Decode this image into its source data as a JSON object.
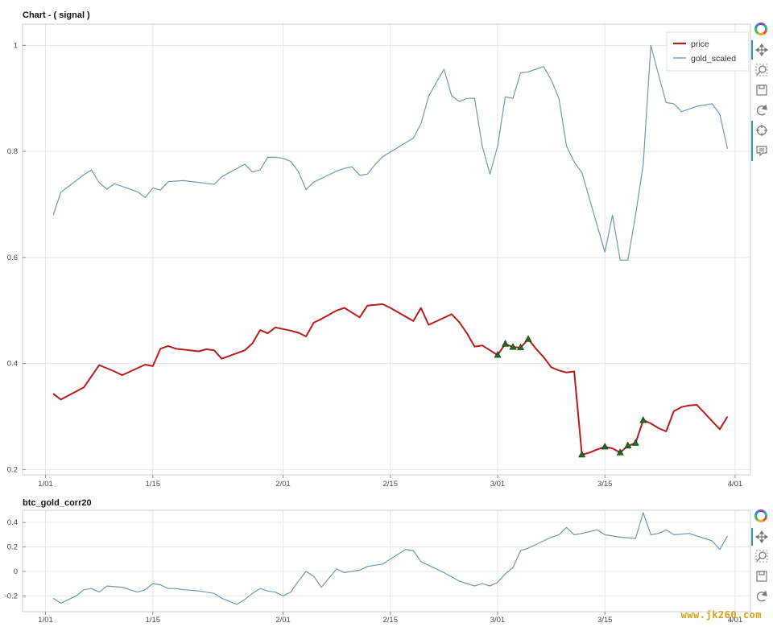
{
  "colors": {
    "price": "#b71c1c",
    "gold": "#6f97a8",
    "marker": "#1f6b1f",
    "grid": "#e6e6e6",
    "toolbar_active": "#2e9aa7"
  },
  "watermark": "www.jk260.com",
  "chart_data": [
    {
      "type": "line",
      "title": "Chart - ( signal )",
      "x_tick_labels": [
        "1/01",
        "1/15",
        "2/01",
        "2/15",
        "3/01",
        "3/15",
        "4/01"
      ],
      "x_tick_days": [
        0,
        14,
        31,
        45,
        59,
        73,
        90
      ],
      "ylim": [
        0.19,
        1.04
      ],
      "y_ticks": [
        0.2,
        0.4,
        0.6,
        0.8,
        1
      ],
      "y_tick_labels": [
        "0.2",
        "0.4",
        "0.6",
        "0.8",
        "1"
      ],
      "grid": true,
      "legend_position": "top-right",
      "series": [
        {
          "name": "price",
          "color_key": "price",
          "x": [
            1,
            2,
            5,
            7,
            9,
            10,
            13,
            14,
            15,
            16,
            17,
            20,
            21,
            22,
            23,
            26,
            27,
            28,
            29,
            30,
            32,
            33,
            34,
            35,
            36,
            37,
            38,
            39,
            41,
            42,
            44,
            45,
            48,
            49,
            50,
            53,
            54,
            55,
            56,
            57,
            58,
            59,
            60,
            61,
            62,
            63,
            64,
            65,
            66,
            67,
            68,
            69,
            70,
            71,
            72,
            73,
            74,
            75,
            76,
            77,
            78,
            79,
            80,
            81,
            82,
            83,
            84,
            85,
            88,
            89
          ],
          "y": [
            0.343,
            0.332,
            0.355,
            0.397,
            0.385,
            0.378,
            0.398,
            0.395,
            0.428,
            0.433,
            0.428,
            0.423,
            0.427,
            0.425,
            0.409,
            0.425,
            0.438,
            0.463,
            0.457,
            0.468,
            0.462,
            0.458,
            0.451,
            0.477,
            0.484,
            0.492,
            0.5,
            0.505,
            0.487,
            0.509,
            0.512,
            0.505,
            0.48,
            0.505,
            0.473,
            0.493,
            0.478,
            0.457,
            0.432,
            0.434,
            0.425,
            0.416,
            0.437,
            0.431,
            0.43,
            0.446,
            0.428,
            0.412,
            0.393,
            0.387,
            0.383,
            0.385,
            0.228,
            0.232,
            0.238,
            0.243,
            0.24,
            0.232,
            0.245,
            0.25,
            0.293,
            0.287,
            0.278,
            0.272,
            0.31,
            0.318,
            0.321,
            0.322,
            0.276,
            0.3
          ]
        },
        {
          "name": "gold_scaled",
          "color_key": "gold",
          "x": [
            1,
            2,
            5,
            6,
            7,
            8,
            9,
            12,
            13,
            14,
            15,
            16,
            18,
            22,
            23,
            26,
            27,
            28,
            29,
            30,
            31,
            32,
            33,
            34,
            35,
            38,
            39,
            40,
            41,
            42,
            43,
            44,
            48,
            49,
            50,
            51,
            52,
            53,
            54,
            55,
            56,
            57,
            58,
            59,
            60,
            61,
            62,
            63,
            64,
            65,
            66,
            67,
            68,
            69,
            70,
            73,
            74,
            75,
            76,
            77,
            78,
            79,
            80,
            81,
            82,
            83,
            84,
            85,
            87,
            88,
            89
          ],
          "y": [
            0.68,
            0.723,
            0.756,
            0.765,
            0.741,
            0.729,
            0.739,
            0.724,
            0.713,
            0.731,
            0.727,
            0.743,
            0.745,
            0.738,
            0.752,
            0.776,
            0.761,
            0.765,
            0.789,
            0.789,
            0.787,
            0.781,
            0.762,
            0.728,
            0.742,
            0.763,
            0.768,
            0.771,
            0.755,
            0.757,
            0.775,
            0.79,
            0.825,
            0.852,
            0.904,
            0.93,
            0.955,
            0.905,
            0.894,
            0.9,
            0.9,
            0.81,
            0.757,
            0.81,
            0.903,
            0.9,
            0.948,
            0.95,
            0.955,
            0.96,
            0.935,
            0.9,
            0.81,
            0.78,
            0.76,
            0.61,
            0.68,
            0.595,
            0.595,
            0.68,
            0.775,
            1.0,
            0.945,
            0.892,
            0.89,
            0.875,
            0.88,
            0.885,
            0.89,
            0.87,
            0.805
          ]
        }
      ],
      "markers": {
        "shape": "triangle",
        "series": "price",
        "x": [
          59,
          60,
          61,
          62,
          63,
          70,
          73,
          75,
          76,
          77,
          78
        ],
        "y": [
          0.416,
          0.437,
          0.431,
          0.43,
          0.446,
          0.228,
          0.243,
          0.232,
          0.245,
          0.25,
          0.293
        ]
      }
    },
    {
      "type": "line",
      "title": "btc_gold_corr20",
      "x_tick_labels": [
        "1/01",
        "1/15",
        "2/01",
        "2/15",
        "3/01",
        "3/15",
        "4/01"
      ],
      "x_tick_days": [
        0,
        14,
        31,
        45,
        59,
        73,
        90
      ],
      "ylim": [
        -0.33,
        0.5
      ],
      "y_ticks": [
        -0.2,
        0,
        0.2,
        0.4
      ],
      "y_tick_labels": [
        "-0.2",
        "0",
        "0.2",
        "0.4"
      ],
      "grid": true,
      "series": [
        {
          "name": "btc_gold_corr20",
          "color_key": "gold",
          "x": [
            1,
            2,
            4,
            5,
            6,
            7,
            8,
            10,
            12,
            13,
            14,
            15,
            16,
            17,
            18,
            20,
            22,
            23,
            25,
            26,
            27,
            28,
            29,
            30,
            31,
            32,
            33,
            34,
            35,
            36,
            38,
            39,
            40,
            41,
            42,
            44,
            47,
            48,
            49,
            50,
            52,
            54,
            55,
            56,
            57,
            58,
            59,
            60,
            61,
            62,
            63,
            64,
            66,
            67,
            68,
            69,
            70,
            72,
            73,
            74,
            75,
            77,
            78,
            79,
            80,
            81,
            82,
            84,
            87,
            88,
            89
          ],
          "y": [
            -0.22,
            -0.26,
            -0.2,
            -0.15,
            -0.14,
            -0.17,
            -0.12,
            -0.13,
            -0.17,
            -0.15,
            -0.1,
            -0.11,
            -0.14,
            -0.14,
            -0.15,
            -0.16,
            -0.18,
            -0.22,
            -0.27,
            -0.23,
            -0.18,
            -0.14,
            -0.16,
            -0.17,
            -0.2,
            -0.17,
            -0.08,
            0.0,
            -0.04,
            -0.13,
            0.02,
            -0.01,
            0.0,
            0.01,
            0.04,
            0.06,
            0.18,
            0.17,
            0.08,
            0.05,
            -0.01,
            -0.08,
            -0.1,
            -0.12,
            -0.1,
            -0.12,
            -0.09,
            -0.02,
            0.03,
            0.17,
            0.19,
            0.22,
            0.28,
            0.3,
            0.36,
            0.3,
            0.31,
            0.34,
            0.3,
            0.29,
            0.28,
            0.27,
            0.48,
            0.3,
            0.31,
            0.34,
            0.3,
            0.31,
            0.25,
            0.18,
            0.29
          ]
        }
      ]
    }
  ]
}
